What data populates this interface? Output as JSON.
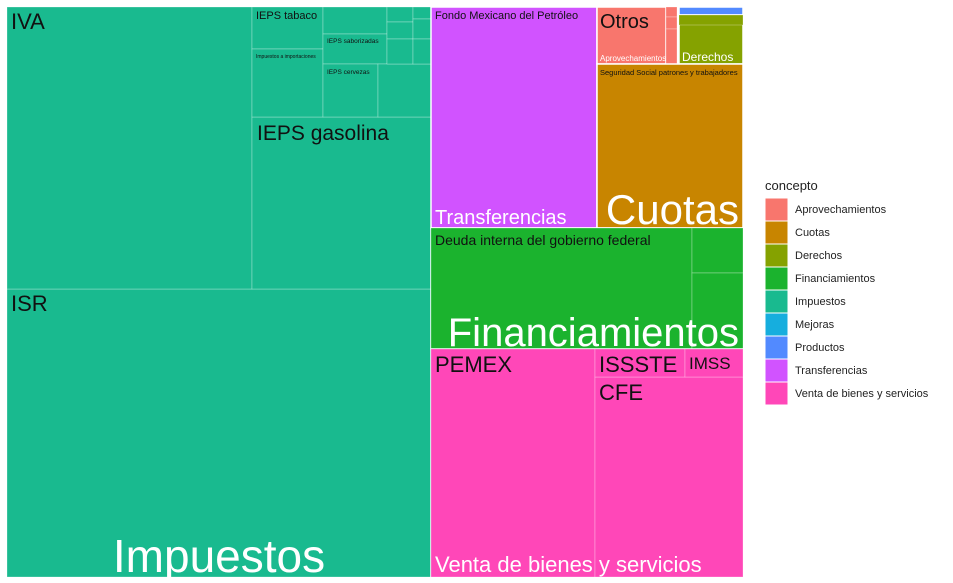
{
  "chart_data": {
    "type": "treemap",
    "legend": {
      "title": "concepto",
      "position": "right",
      "entries": [
        {
          "label": "Aprovechamientos",
          "color": "#F8766D"
        },
        {
          "label": "Cuotas",
          "color": "#C88500"
        },
        {
          "label": "Derechos",
          "color": "#85A200"
        },
        {
          "label": "Financiamientos",
          "color": "#1BB32E"
        },
        {
          "label": "Impuestos",
          "color": "#19BA8F"
        },
        {
          "label": "Mejoras",
          "color": "#16AEDE"
        },
        {
          "label": "Productos",
          "color": "#528AFF"
        },
        {
          "label": "Transferencias",
          "color": "#D153FF"
        },
        {
          "label": "Venta de bienes y servicios",
          "color": "#FF47B8"
        }
      ]
    },
    "groups": [
      {
        "label": "Impuestos",
        "color": "#19BA8F",
        "items": [
          {
            "label": "ISR"
          },
          {
            "label": "IVA"
          },
          {
            "label": "IEPS gasolina"
          },
          {
            "label": "IEPS tabaco"
          },
          {
            "label": "IEPS saborizadas"
          },
          {
            "label": "Impuestos a importaciones"
          },
          {
            "label": "IEPS cervezas"
          }
        ]
      },
      {
        "label": "Transferencias",
        "color": "#D153FF",
        "items": [
          {
            "label": "Fondo Mexicano del Petróleo"
          }
        ]
      },
      {
        "label": "Cuotas",
        "color": "#C88500",
        "items": [
          {
            "label": "Seguridad Social patrones y trabajadores"
          }
        ]
      },
      {
        "label": "Aprovechamientos",
        "color": "#F8766D",
        "items": [
          {
            "label": "Otros"
          },
          {
            "label": "Aprovechamientos"
          }
        ]
      },
      {
        "label": "Derechos",
        "color": "#85A200",
        "items": [
          {
            "label": "Derechos"
          }
        ]
      },
      {
        "label": "Productos",
        "color": "#528AFF",
        "items": []
      },
      {
        "label": "Financiamientos",
        "color": "#1BB32E",
        "items": [
          {
            "label": "Deuda interna del gobierno federal"
          }
        ]
      },
      {
        "label": "Venta de bienes y servicios",
        "color": "#FF47B8",
        "items": [
          {
            "label": "PEMEX"
          },
          {
            "label": "CFE"
          },
          {
            "label": "ISSSTE"
          },
          {
            "label": "IMSS"
          }
        ]
      }
    ]
  }
}
